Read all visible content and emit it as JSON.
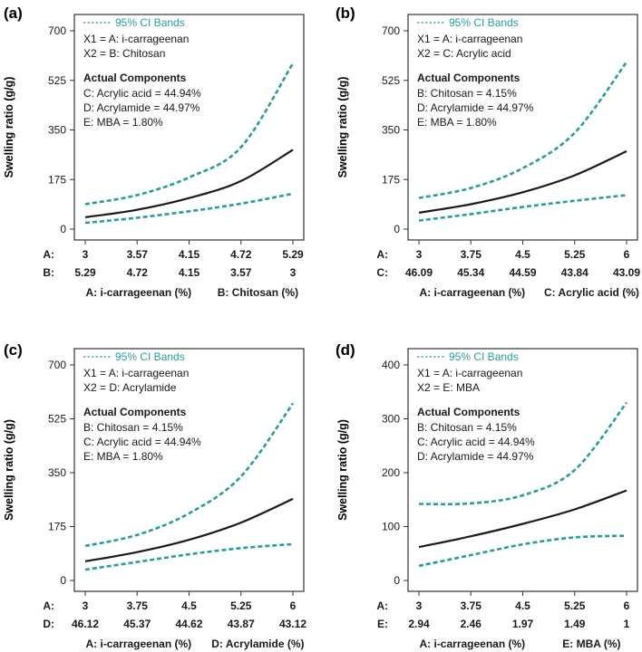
{
  "colors": {
    "ci": "#2a9d9a",
    "fit": "#1a1a1a",
    "axis": "#333333"
  },
  "chart_data": [
    {
      "panel": "(a)",
      "type": "line",
      "ylabel": "Swelling ratio (g/g)",
      "ylim": [
        0,
        700
      ],
      "yticks": [
        0,
        175,
        350,
        525,
        700
      ],
      "legend": "95% CI Bands",
      "x1_text": "X1 = A: i-carrageenan",
      "x2_text": "X2 = B: Chitosan",
      "components_title": "Actual Components",
      "components": [
        "C: Acrylic acid = 44.94%",
        "D: Acrylamide = 44.97%",
        "E: MBA = 1.80%"
      ],
      "xaxis1_name": "A:",
      "xaxis1_ticks": [
        "3",
        "3.57",
        "4.15",
        "4.72",
        "5.29"
      ],
      "xaxis2_name": "B:",
      "xaxis2_ticks": [
        "5.29",
        "4.72",
        "4.15",
        "3.57",
        "3"
      ],
      "xlabel1": "A: i-carrageenan (%)",
      "xlabel2": "B: Chitosan (%)",
      "xlim": [
        3,
        5.29
      ],
      "series": [
        {
          "name": "upper",
          "x": [
            3,
            3.57,
            4.15,
            4.72,
            5.29
          ],
          "y": [
            88,
            120,
            183,
            290,
            585
          ]
        },
        {
          "name": "fit",
          "x": [
            3,
            3.57,
            4.15,
            4.72,
            5.29
          ],
          "y": [
            42,
            68,
            110,
            170,
            280
          ]
        },
        {
          "name": "lower",
          "x": [
            3,
            3.57,
            4.15,
            4.72,
            5.29
          ],
          "y": [
            22,
            40,
            63,
            90,
            125
          ]
        }
      ]
    },
    {
      "panel": "(b)",
      "type": "line",
      "ylabel": "Swelling ratio (g/g)",
      "ylim": [
        0,
        700
      ],
      "yticks": [
        0,
        175,
        350,
        525,
        700
      ],
      "legend": "95% CI Bands",
      "x1_text": "X1 = A: i-carrageenan",
      "x2_text": "X2 = C: Acrylic acid",
      "components_title": "Actual Components",
      "components": [
        "B: Chitosan = 4.15%",
        "D: Acrylamide = 44.97%",
        "E: MBA = 1.80%"
      ],
      "xaxis1_name": "A:",
      "xaxis1_ticks": [
        "3",
        "3.75",
        "4.5",
        "5.25",
        "6"
      ],
      "xaxis2_name": "C:",
      "xaxis2_ticks": [
        "46.09",
        "45.34",
        "44.59",
        "43.84",
        "43.09"
      ],
      "xlabel1": "A: i-carrageenan (%)",
      "xlabel2": "C: Acrylic acid (%)",
      "xlim": [
        3,
        6
      ],
      "series": [
        {
          "name": "upper",
          "x": [
            3,
            3.75,
            4.5,
            5.25,
            6
          ],
          "y": [
            110,
            145,
            215,
            340,
            590
          ]
        },
        {
          "name": "fit",
          "x": [
            3,
            3.75,
            4.5,
            5.25,
            6
          ],
          "y": [
            58,
            88,
            130,
            190,
            275
          ]
        },
        {
          "name": "lower",
          "x": [
            3,
            3.75,
            4.5,
            5.25,
            6
          ],
          "y": [
            30,
            53,
            78,
            100,
            120
          ]
        }
      ]
    },
    {
      "panel": "(c)",
      "type": "line",
      "ylabel": "Swelling ratio (g/g)",
      "ylim": [
        0,
        700
      ],
      "yticks": [
        0,
        175,
        350,
        525,
        700
      ],
      "legend": "95% CI Bands",
      "x1_text": "X1 = A: i-carrageenan",
      "x2_text": "X2 = D: Acrylamide",
      "components_title": "Actual Components",
      "components": [
        "B: Chitosan = 4.15%",
        "C: Acrylic acid = 44.94%",
        "E: MBA = 1.80%"
      ],
      "xaxis1_name": "A:",
      "xaxis1_ticks": [
        "3",
        "3.75",
        "4.5",
        "5.25",
        "6"
      ],
      "xaxis2_name": "D:",
      "xaxis2_ticks": [
        "46.12",
        "45.37",
        "44.62",
        "43.87",
        "43.12"
      ],
      "xlabel1": "A: i-carrageenan (%)",
      "xlabel2": "D: Acrylamide (%)",
      "xlim": [
        3,
        6
      ],
      "series": [
        {
          "name": "upper",
          "x": [
            3,
            3.75,
            4.5,
            5.25,
            6
          ],
          "y": [
            112,
            148,
            218,
            338,
            575
          ]
        },
        {
          "name": "fit",
          "x": [
            3,
            3.75,
            4.5,
            5.25,
            6
          ],
          "y": [
            62,
            92,
            132,
            188,
            265
          ]
        },
        {
          "name": "lower",
          "x": [
            3,
            3.75,
            4.5,
            5.25,
            6
          ],
          "y": [
            35,
            60,
            85,
            105,
            118
          ]
        }
      ]
    },
    {
      "panel": "(d)",
      "type": "line",
      "ylabel": "Swelling ratio (g/g)",
      "ylim": [
        0,
        400
      ],
      "yticks": [
        0,
        100,
        200,
        300,
        400
      ],
      "legend": "95% CI Bands",
      "x1_text": "X1 = A: i-carrageenan",
      "x2_text": "X2 = E: MBA",
      "components_title": "Actual Components",
      "components": [
        "B: Chitosan = 4.15%",
        "C: Acrylic acid = 44.94%",
        "D: Acrylamide = 44.97%"
      ],
      "xaxis1_name": "A:",
      "xaxis1_ticks": [
        "3",
        "3.75",
        "4.5",
        "5.25",
        "6"
      ],
      "xaxis2_name": "E:",
      "xaxis2_ticks": [
        "2.94",
        "2.46",
        "1.97",
        "1.49",
        "1"
      ],
      "xlabel1": "A: i-carrageenan (%)",
      "xlabel2": "E: MBA (%)",
      "xlim": [
        3,
        6
      ],
      "series": [
        {
          "name": "upper",
          "x": [
            3,
            3.75,
            4.5,
            5.25,
            6
          ],
          "y": [
            142,
            143,
            158,
            205,
            330
          ]
        },
        {
          "name": "fit",
          "x": [
            3,
            3.75,
            4.5,
            5.25,
            6
          ],
          "y": [
            62,
            82,
            105,
            132,
            167
          ]
        },
        {
          "name": "lower",
          "x": [
            3,
            3.75,
            4.5,
            5.25,
            6
          ],
          "y": [
            27,
            47,
            67,
            80,
            83
          ]
        }
      ]
    }
  ]
}
